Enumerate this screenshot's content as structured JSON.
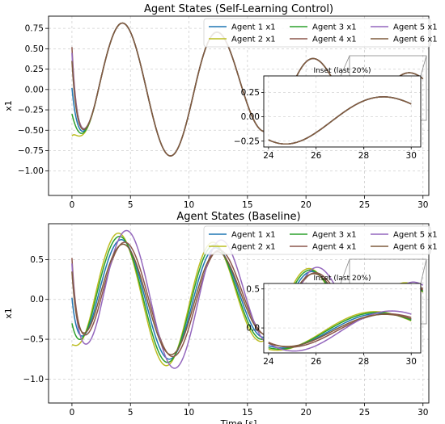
{
  "chart_data": [
    {
      "type": "line",
      "title": "Agent States (Self-Learning Control)",
      "xlabel": "",
      "ylabel": "x1",
      "xlim": [
        -2.0,
        30.5
      ],
      "ylim": [
        -1.3,
        0.9
      ],
      "xticks": [
        0,
        5,
        10,
        15,
        20,
        25,
        30
      ],
      "yticks": [
        -1.0,
        -0.75,
        -0.5,
        -0.25,
        0.0,
        0.25,
        0.5,
        0.75
      ],
      "ytick_labels": [
        "−1.00",
        "−0.75",
        "−0.50",
        "−0.25",
        "0.00",
        "0.25",
        "0.50",
        "0.75"
      ],
      "grid": true,
      "legend_position": "top-right",
      "legend_columns": 3,
      "series": [
        {
          "name": "Agent 1 x1",
          "color": "#1f77b4",
          "initial": 0.02,
          "amp_scale": 1.0,
          "phase_shift": 0.0
        },
        {
          "name": "Agent 2 x1",
          "color": "#bcbd22",
          "initial": -0.57,
          "amp_scale": 1.0,
          "phase_shift": 0.0
        },
        {
          "name": "Agent 3 x1",
          "color": "#2ca02c",
          "initial": -0.3,
          "amp_scale": 1.0,
          "phase_shift": 0.0
        },
        {
          "name": "Agent 4 x1",
          "color": "#8c564b",
          "initial": 0.52,
          "amp_scale": 1.0,
          "phase_shift": 0.0
        },
        {
          "name": "Agent 5 x1",
          "color": "#9467bd",
          "initial": 0.45,
          "amp_scale": 1.0,
          "phase_shift": 0.0
        },
        {
          "name": "Agent 6 x1",
          "color": "#7f5b3d",
          "initial": 0.35,
          "amp_scale": 1.0,
          "phase_shift": 0.0
        }
      ],
      "inset": {
        "title": "Inset (last 20%)",
        "xlim": [
          23.8,
          30.4
        ],
        "ylim": [
          -0.31,
          0.42
        ],
        "xticks": [
          24,
          26,
          28,
          30
        ],
        "yticks": [
          -0.25,
          0.0,
          0.25
        ],
        "ytick_labels": [
          "−0.25",
          "0.00",
          "0.25"
        ]
      }
    },
    {
      "type": "line",
      "title": "Agent States (Baseline)",
      "xlabel": "Time [s]",
      "ylabel": "x1",
      "xlim": [
        -2.0,
        30.5
      ],
      "ylim": [
        -1.3,
        0.95
      ],
      "xticks": [
        0,
        5,
        10,
        15,
        20,
        25,
        30
      ],
      "yticks": [
        -1.0,
        -0.5,
        0.0,
        0.5
      ],
      "ytick_labels": [
        "−1.0",
        "−0.5",
        "0.0",
        "0.5"
      ],
      "grid": true,
      "legend_position": "top-right",
      "legend_columns": 3,
      "series": [
        {
          "name": "Agent 1 x1",
          "color": "#1f77b4",
          "initial": 0.02,
          "amp_scale": 0.92,
          "phase_shift": 0.1
        },
        {
          "name": "Agent 2 x1",
          "color": "#bcbd22",
          "initial": -0.57,
          "amp_scale": 1.02,
          "phase_shift": 0.35
        },
        {
          "name": "Agent 3 x1",
          "color": "#2ca02c",
          "initial": -0.3,
          "amp_scale": 0.97,
          "phase_shift": 0.25
        },
        {
          "name": "Agent 4 x1",
          "color": "#8c564b",
          "initial": 0.52,
          "amp_scale": 0.88,
          "phase_shift": -0.2
        },
        {
          "name": "Agent 5 x1",
          "color": "#9467bd",
          "initial": 0.45,
          "amp_scale": 1.06,
          "phase_shift": -0.35
        },
        {
          "name": "Agent 6 x1",
          "color": "#7f5b3d",
          "initial": 0.35,
          "amp_scale": 0.85,
          "phase_shift": -0.05
        }
      ],
      "inset": {
        "title": "Inset (last 20%)",
        "xlim": [
          23.8,
          30.4
        ],
        "ylim": [
          -0.32,
          0.57
        ],
        "xticks": [
          24,
          26,
          28,
          30
        ],
        "yticks": [
          0.0,
          0.5
        ],
        "ytick_labels": [
          "0.0",
          "0.5"
        ]
      }
    }
  ]
}
